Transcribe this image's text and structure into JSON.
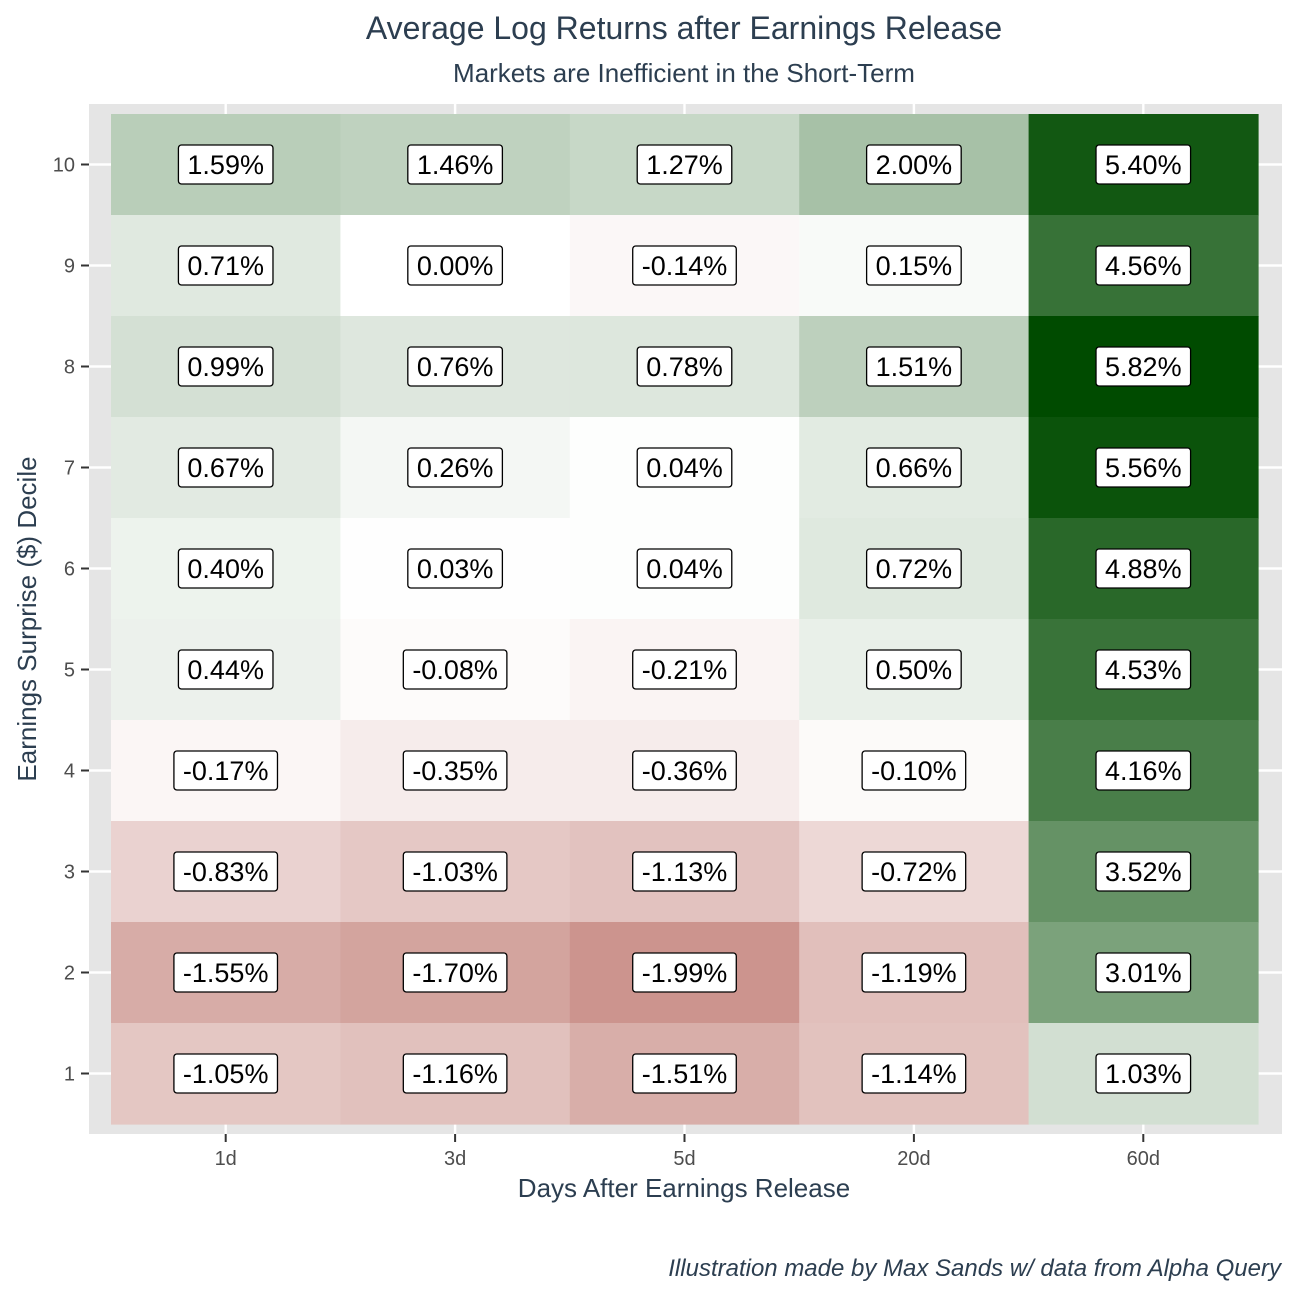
{
  "chart_data": {
    "type": "heatmap",
    "title": "Average Log Returns after Earnings Release",
    "subtitle": "Markets are Inefficient in the Short-Term",
    "xlabel": "Days After Earnings Release",
    "ylabel": "Earnings Surprise ($) Decile",
    "caption": "Illustration made by Max Sands w/ data from Alpha Query",
    "x_categories": [
      "1d",
      "3d",
      "5d",
      "20d",
      "60d"
    ],
    "y_categories": [
      "1",
      "2",
      "3",
      "4",
      "5",
      "6",
      "7",
      "8",
      "9",
      "10"
    ],
    "rows": [
      {
        "decile": "10",
        "values": [
          1.59,
          1.46,
          1.27,
          2.0,
          5.4
        ],
        "labels": [
          "1.59%",
          "1.46%",
          "1.27%",
          "2.00%",
          "5.40%"
        ]
      },
      {
        "decile": "9",
        "values": [
          0.71,
          0.0,
          -0.14,
          0.15,
          4.56
        ],
        "labels": [
          "0.71%",
          "0.00%",
          "-0.14%",
          "0.15%",
          "4.56%"
        ]
      },
      {
        "decile": "8",
        "values": [
          0.99,
          0.76,
          0.78,
          1.51,
          5.82
        ],
        "labels": [
          "0.99%",
          "0.76%",
          "0.78%",
          "1.51%",
          "5.82%"
        ]
      },
      {
        "decile": "7",
        "values": [
          0.67,
          0.26,
          0.04,
          0.66,
          5.56
        ],
        "labels": [
          "0.67%",
          "0.26%",
          "0.04%",
          "0.66%",
          "5.56%"
        ]
      },
      {
        "decile": "6",
        "values": [
          0.4,
          0.03,
          0.04,
          0.72,
          4.88
        ],
        "labels": [
          "0.40%",
          "0.03%",
          "0.04%",
          "0.72%",
          "4.88%"
        ]
      },
      {
        "decile": "5",
        "values": [
          0.44,
          -0.08,
          -0.21,
          0.5,
          4.53
        ],
        "labels": [
          "0.44%",
          "-0.08%",
          "-0.21%",
          "0.50%",
          "4.53%"
        ]
      },
      {
        "decile": "4",
        "values": [
          -0.17,
          -0.35,
          -0.36,
          -0.1,
          4.16
        ],
        "labels": [
          "-0.17%",
          "-0.35%",
          "-0.36%",
          "-0.10%",
          "4.16%"
        ]
      },
      {
        "decile": "3",
        "values": [
          -0.83,
          -1.03,
          -1.13,
          -0.72,
          3.52
        ],
        "labels": [
          "-0.83%",
          "-1.03%",
          "-1.13%",
          "-0.72%",
          "3.52%"
        ]
      },
      {
        "decile": "2",
        "values": [
          -1.55,
          -1.7,
          -1.99,
          -1.19,
          3.01
        ],
        "labels": [
          "-1.55%",
          "-1.70%",
          "-1.99%",
          "-1.19%",
          "3.01%"
        ]
      },
      {
        "decile": "1",
        "values": [
          -1.05,
          -1.16,
          -1.51,
          -1.14,
          1.03
        ],
        "labels": [
          "-1.05%",
          "-1.16%",
          "-1.51%",
          "-1.14%",
          "1.03%"
        ]
      }
    ],
    "color_scale": {
      "low": "#cc948e",
      "mid": "#ffffff",
      "high": "#004b00",
      "low_value": -1.99,
      "high_value": 5.82
    },
    "panel_background": "#e5e5e5",
    "grid": true,
    "legend": "none"
  }
}
